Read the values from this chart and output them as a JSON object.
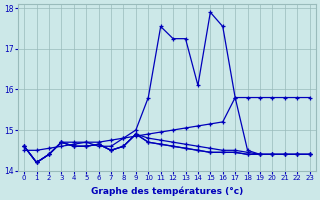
{
  "xlabel": "Graphe des températures (°c)",
  "x": [
    0,
    1,
    2,
    3,
    4,
    5,
    6,
    7,
    8,
    9,
    10,
    11,
    12,
    13,
    14,
    15,
    16,
    17,
    18,
    19,
    20,
    21,
    22,
    23
  ],
  "line_main": [
    14.6,
    14.2,
    14.4,
    14.7,
    14.7,
    14.7,
    14.6,
    14.6,
    14.8,
    15.0,
    15.8,
    17.55,
    17.25,
    17.25,
    16.1,
    17.9,
    17.55,
    15.8,
    14.5,
    14.4,
    14.4,
    14.4,
    14.4,
    14.4
  ],
  "line_diag": [
    14.5,
    14.5,
    14.55,
    14.6,
    14.65,
    14.7,
    14.7,
    14.75,
    14.8,
    14.85,
    14.9,
    14.95,
    15.0,
    15.05,
    15.1,
    15.15,
    15.2,
    15.8,
    15.8,
    15.8,
    15.8,
    15.8,
    15.8,
    15.8
  ],
  "line_flat1": [
    14.6,
    14.2,
    14.4,
    14.7,
    14.6,
    14.6,
    14.65,
    14.5,
    14.6,
    14.9,
    14.8,
    14.75,
    14.7,
    14.65,
    14.6,
    14.55,
    14.5,
    14.5,
    14.45,
    14.4,
    14.4,
    14.4,
    14.4,
    14.4
  ],
  "line_flat2": [
    14.6,
    14.2,
    14.4,
    14.7,
    14.6,
    14.6,
    14.65,
    14.5,
    14.6,
    14.9,
    14.7,
    14.65,
    14.6,
    14.55,
    14.5,
    14.45,
    14.45,
    14.45,
    14.4,
    14.4,
    14.4,
    14.4,
    14.4,
    14.4
  ],
  "line_flat3": [
    14.6,
    14.2,
    14.4,
    14.7,
    14.6,
    14.6,
    14.65,
    14.5,
    14.6,
    14.9,
    14.7,
    14.65,
    14.6,
    14.55,
    14.5,
    14.45,
    14.45,
    14.45,
    14.4,
    14.4,
    14.4,
    14.4,
    14.4,
    14.4
  ],
  "line_color": "#0000bb",
  "bg_color": "#cce8e8",
  "grid_color": "#99bbbb",
  "ylim": [
    14.0,
    18.1
  ],
  "yticks": [
    14,
    15,
    16,
    17,
    18
  ],
  "xticks": [
    0,
    1,
    2,
    3,
    4,
    5,
    6,
    7,
    8,
    9,
    10,
    11,
    12,
    13,
    14,
    15,
    16,
    17,
    18,
    19,
    20,
    21,
    22,
    23
  ]
}
